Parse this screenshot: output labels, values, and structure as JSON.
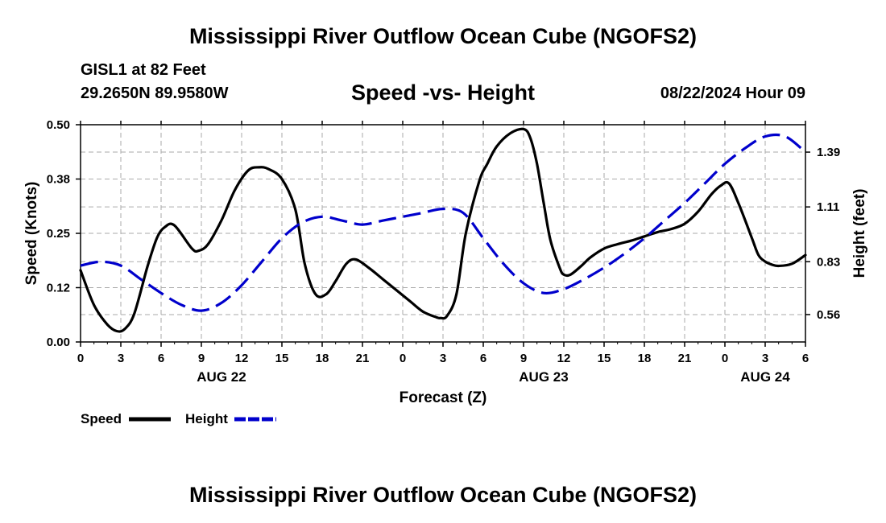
{
  "header": {
    "title": "Mississippi River Outflow Ocean Cube (NGOFS2)",
    "station": "GISL1 at 82 Feet",
    "coords": "29.2650N  89.9580W",
    "subtitle": "Speed -vs- Height",
    "datetime": "08/22/2024 Hour 09"
  },
  "footer": {
    "title": "Mississippi River Outflow Ocean Cube (NGOFS2)"
  },
  "legend": {
    "items": [
      {
        "label": "Speed",
        "color": "#000000",
        "dashed": false
      },
      {
        "label": "Height",
        "color": "#0000cc",
        "dashed": true
      }
    ]
  },
  "chart_data": {
    "type": "line",
    "xlabel": "Forecast (Z)",
    "ylabel": "Speed (Knots)",
    "y2label": "Height (feet)",
    "x_range": [
      0,
      54
    ],
    "ylim": [
      0,
      0.5
    ],
    "y2lim": [
      0.42,
      1.53
    ],
    "x_ticks": [
      {
        "x": 0,
        "label": "0"
      },
      {
        "x": 3,
        "label": "3"
      },
      {
        "x": 6,
        "label": "6"
      },
      {
        "x": 9,
        "label": "9"
      },
      {
        "x": 12,
        "label": "12"
      },
      {
        "x": 15,
        "label": "15"
      },
      {
        "x": 18,
        "label": "18"
      },
      {
        "x": 21,
        "label": "21"
      },
      {
        "x": 24,
        "label": "0"
      },
      {
        "x": 27,
        "label": "3"
      },
      {
        "x": 30,
        "label": "6"
      },
      {
        "x": 33,
        "label": "9"
      },
      {
        "x": 36,
        "label": "12"
      },
      {
        "x": 39,
        "label": "15"
      },
      {
        "x": 42,
        "label": "18"
      },
      {
        "x": 45,
        "label": "21"
      },
      {
        "x": 48,
        "label": "0"
      },
      {
        "x": 51,
        "label": "3"
      },
      {
        "x": 54,
        "label": "6"
      }
    ],
    "date_labels": [
      {
        "x": 10.5,
        "label": "AUG 22"
      },
      {
        "x": 34.5,
        "label": "AUG 23"
      },
      {
        "x": 51,
        "label": "AUG 24"
      }
    ],
    "y_ticks": [
      {
        "value": 0.0,
        "label": "0.00"
      },
      {
        "value": 0.125,
        "label": "0.12"
      },
      {
        "value": 0.25,
        "label": "0.25"
      },
      {
        "value": 0.375,
        "label": "0.38"
      },
      {
        "value": 0.5,
        "label": "0.50"
      }
    ],
    "y2_ticks": [
      {
        "value": 0.56,
        "label": "0.56"
      },
      {
        "value": 0.83,
        "label": "0.83"
      },
      {
        "value": 1.11,
        "label": "1.11"
      },
      {
        "value": 1.39,
        "label": "1.39"
      }
    ],
    "series": [
      {
        "name": "Speed",
        "axis": "left",
        "color": "#000000",
        "dashed": false,
        "x": [
          0,
          1,
          2,
          2.7,
          3.3,
          4,
          5,
          5.7,
          6.3,
          7,
          8.3,
          8.8,
          9.5,
          10.5,
          11.5,
          12.5,
          13.3,
          14,
          15,
          16,
          16.7,
          17.5,
          18.3,
          19,
          19.8,
          20.5,
          21.5,
          22.5,
          23.5,
          24.5,
          25.5,
          26.5,
          26.8,
          27.3,
          28,
          28.7,
          29.7,
          30.3,
          31,
          32,
          33,
          33.5,
          34,
          34.5,
          35,
          35.7,
          36,
          36.5,
          37.3,
          38,
          39,
          40,
          41,
          42,
          43,
          44,
          45,
          46,
          47,
          47.7,
          48.3,
          49,
          50,
          50.5,
          51,
          51.5,
          52,
          53,
          54
        ],
        "y": [
          0.165,
          0.085,
          0.04,
          0.025,
          0.03,
          0.065,
          0.175,
          0.24,
          0.265,
          0.268,
          0.215,
          0.21,
          0.225,
          0.28,
          0.35,
          0.395,
          0.402,
          0.398,
          0.375,
          0.305,
          0.18,
          0.11,
          0.11,
          0.14,
          0.18,
          0.19,
          0.17,
          0.145,
          0.12,
          0.095,
          0.07,
          0.057,
          0.055,
          0.06,
          0.11,
          0.25,
          0.37,
          0.41,
          0.45,
          0.48,
          0.49,
          0.47,
          0.41,
          0.32,
          0.235,
          0.17,
          0.155,
          0.155,
          0.175,
          0.195,
          0.215,
          0.225,
          0.233,
          0.243,
          0.253,
          0.26,
          0.272,
          0.3,
          0.34,
          0.36,
          0.365,
          0.32,
          0.24,
          0.2,
          0.185,
          0.178,
          0.175,
          0.18,
          0.2
        ]
      },
      {
        "name": "Height",
        "axis": "right",
        "color": "#0000cc",
        "dashed": true,
        "x": [
          0,
          1.5,
          3,
          4.5,
          6,
          7.5,
          9,
          10.5,
          12,
          13.5,
          15,
          16.5,
          18,
          19.5,
          21,
          22.5,
          24,
          25.5,
          27,
          28.5,
          30,
          31.5,
          33,
          34.5,
          36,
          37.5,
          39,
          40.5,
          42,
          43.5,
          45,
          46.5,
          48,
          49.5,
          51,
          52.5,
          54
        ],
        "y": [
          0.81,
          0.83,
          0.81,
          0.74,
          0.67,
          0.61,
          0.58,
          0.62,
          0.71,
          0.83,
          0.95,
          1.03,
          1.06,
          1.04,
          1.02,
          1.04,
          1.06,
          1.08,
          1.1,
          1.08,
          0.95,
          0.82,
          0.72,
          0.67,
          0.69,
          0.74,
          0.8,
          0.87,
          0.95,
          1.04,
          1.13,
          1.23,
          1.33,
          1.41,
          1.47,
          1.47,
          1.39
        ]
      }
    ]
  }
}
